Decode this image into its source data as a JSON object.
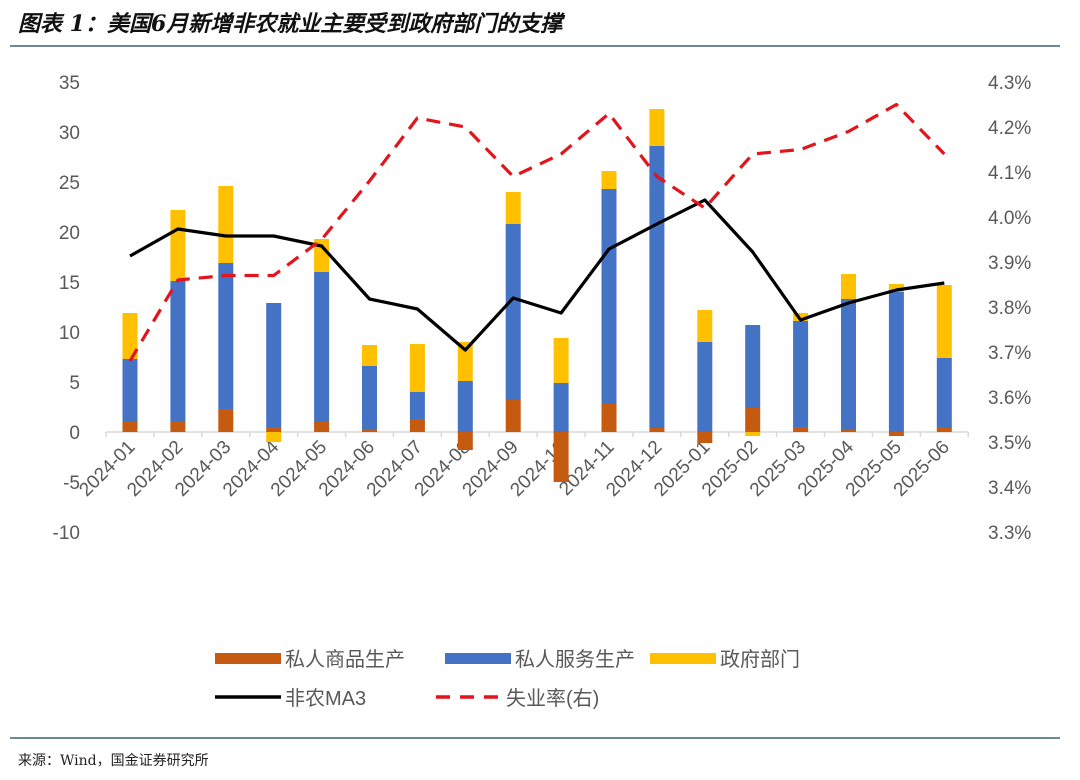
{
  "title": "图表 1：美国6月新增非农就业主要受到政府部门的支撑",
  "source": "来源：Wind，国金证券研究所",
  "chart_data": {
    "type": "bar+line",
    "stacked": true,
    "categories": [
      "2024-01",
      "2024-02",
      "2024-03",
      "2024-04",
      "2024-05",
      "2024-06",
      "2024-07",
      "2024-08",
      "2024-09",
      "2024-10",
      "2024-11",
      "2024-12",
      "2025-01",
      "2025-02",
      "2025-03",
      "2025-04",
      "2025-05",
      "2025-06"
    ],
    "series": [
      {
        "name": "私人商品生产",
        "type": "bar",
        "axis": "left",
        "color": "#C55A11",
        "values": [
          1.0,
          1.1,
          2.3,
          0.5,
          1.0,
          0.3,
          1.3,
          -1.8,
          3.2,
          -5.0,
          2.8,
          0.4,
          -1.1,
          2.4,
          0.5,
          0.2,
          -0.4,
          0.5
        ]
      },
      {
        "name": "私人服务生产",
        "type": "bar",
        "axis": "left",
        "color": "#4472C4",
        "values": [
          6.3,
          14.0,
          14.6,
          12.4,
          15.0,
          6.3,
          2.7,
          5.1,
          17.6,
          4.9,
          21.5,
          28.2,
          9.0,
          8.3,
          10.6,
          13.1,
          14.0,
          6.9
        ]
      },
      {
        "name": "政府部门",
        "type": "bar",
        "axis": "left",
        "color": "#FFC000",
        "values": [
          4.6,
          7.1,
          7.7,
          -1.0,
          3.3,
          2.1,
          4.8,
          3.9,
          3.2,
          4.5,
          1.8,
          3.7,
          3.2,
          -0.4,
          0.8,
          2.5,
          0.8,
          7.3
        ]
      },
      {
        "name": "非农MA3",
        "type": "line",
        "axis": "left",
        "color": "#000000",
        "values": [
          17.6,
          20.3,
          19.6,
          19.6,
          18.6,
          13.3,
          12.3,
          8.2,
          13.4,
          11.9,
          18.3,
          20.8,
          23.2,
          18.0,
          11.2,
          12.9,
          14.2,
          14.9
        ]
      },
      {
        "name": "失业率(右)",
        "type": "line",
        "dashed": true,
        "axis": "right",
        "color": "#E3141B",
        "values": [
          3.68,
          3.86,
          3.87,
          3.87,
          3.95,
          4.08,
          4.22,
          4.2,
          4.09,
          4.14,
          4.23,
          4.09,
          4.02,
          4.14,
          4.15,
          4.19,
          4.25,
          4.14
        ]
      }
    ],
    "ylim": [
      -10,
      35
    ],
    "yticks": [
      "35",
      "30",
      "25",
      "20",
      "15",
      "10",
      "5",
      "0",
      "-5",
      "-10"
    ],
    "y2lim": [
      3.3,
      4.3
    ],
    "y2ticks": [
      "4.3%",
      "4.2%",
      "4.1%",
      "4.0%",
      "3.9%",
      "3.8%",
      "3.7%",
      "3.6%",
      "3.5%",
      "3.4%",
      "3.3%"
    ],
    "grid": false,
    "legend_position": "bottom"
  }
}
